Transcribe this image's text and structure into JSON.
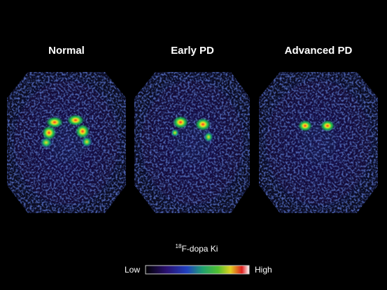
{
  "panels": [
    {
      "label": "Normal"
    },
    {
      "label": "Early PD"
    },
    {
      "label": "Advanced PD"
    }
  ],
  "colorbar": {
    "title_sup": "18",
    "title": "F-dopa Ki",
    "low": "Low",
    "high": "High"
  }
}
